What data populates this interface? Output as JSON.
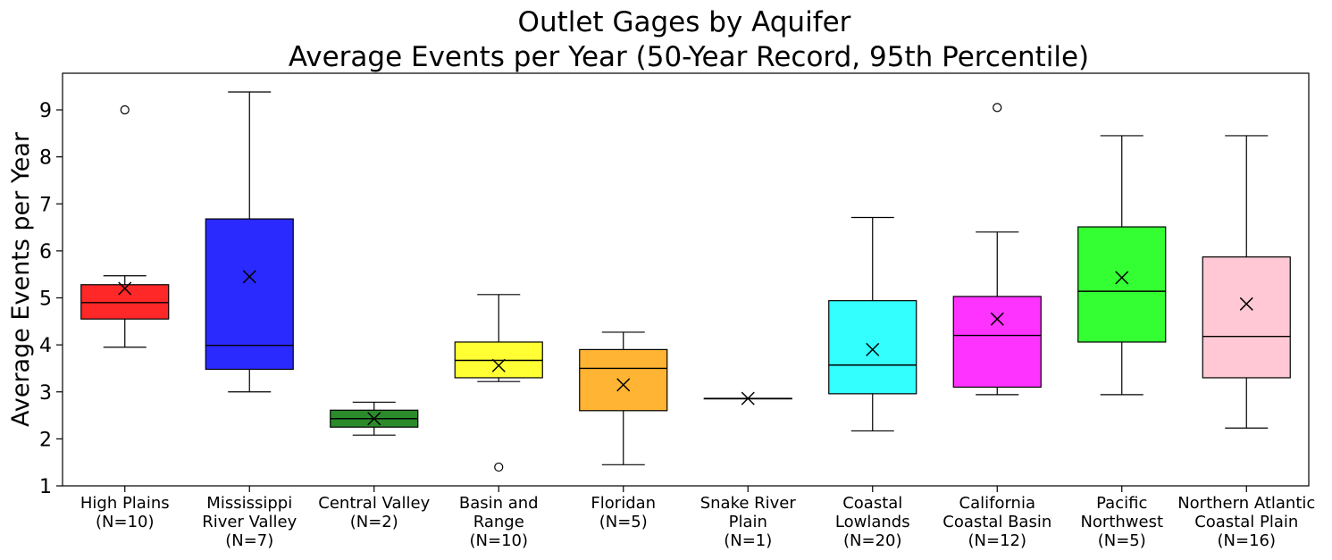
{
  "chart_data": {
    "type": "box",
    "title": "Outlet Gages by Aquifer",
    "subtitle": "Average Events per Year (50-Year Record, 95th Percentile)",
    "xlabel": "",
    "ylabel": "Average Events per Year",
    "ylim": [
      1,
      9.8
    ],
    "yticks": [
      1,
      2,
      3,
      4,
      5,
      6,
      7,
      8,
      9
    ],
    "grid": false,
    "mean_marker": "x",
    "outlier_marker": "circle",
    "categories": [
      {
        "label_lines": [
          "High Plains",
          "(N=10)"
        ],
        "color": "#ff2828",
        "whisker_low": 3.95,
        "q1": 4.55,
        "median": 4.9,
        "q3": 5.28,
        "whisker_high": 5.47,
        "mean": 5.2,
        "outliers": [
          9.0
        ]
      },
      {
        "label_lines": [
          "Mississippi",
          "River Valley",
          "(N=7)"
        ],
        "color": "#2a2aff",
        "whisker_low": 3.0,
        "q1": 3.48,
        "median": 3.99,
        "q3": 6.68,
        "whisker_high": 9.38,
        "mean": 5.45,
        "outliers": []
      },
      {
        "label_lines": [
          "Central Valley",
          "(N=2)"
        ],
        "color": "#2b8b2b",
        "whisker_low": 2.08,
        "q1": 2.25,
        "median": 2.43,
        "q3": 2.61,
        "whisker_high": 2.78,
        "mean": 2.43,
        "outliers": []
      },
      {
        "label_lines": [
          "Basin and",
          "Range",
          "(N=10)"
        ],
        "color": "#ffff33",
        "whisker_low": 3.22,
        "q1": 3.3,
        "median": 3.67,
        "q3": 4.06,
        "whisker_high": 5.07,
        "mean": 3.56,
        "outliers": [
          1.4
        ]
      },
      {
        "label_lines": [
          "Floridan",
          "(N=5)"
        ],
        "color": "#ffb433",
        "whisker_low": 1.45,
        "q1": 2.6,
        "median": 3.5,
        "q3": 3.9,
        "whisker_high": 4.27,
        "mean": 3.15,
        "outliers": []
      },
      {
        "label_lines": [
          "Snake River",
          "Plain",
          "(N=1)"
        ],
        "color": "#3a3a3a",
        "whisker_low": 2.86,
        "q1": 2.86,
        "median": 2.86,
        "q3": 2.86,
        "whisker_high": 2.86,
        "mean": 2.86,
        "outliers": []
      },
      {
        "label_lines": [
          "Coastal",
          "Lowlands",
          "(N=20)"
        ],
        "color": "#33ffff",
        "whisker_low": 2.17,
        "q1": 2.96,
        "median": 3.57,
        "q3": 4.94,
        "whisker_high": 6.71,
        "mean": 3.9,
        "outliers": []
      },
      {
        "label_lines": [
          "California",
          "Coastal Basin",
          "(N=12)"
        ],
        "color": "#ff33ff",
        "whisker_low": 2.94,
        "q1": 3.1,
        "median": 4.2,
        "q3": 5.03,
        "whisker_high": 6.4,
        "mean": 4.55,
        "outliers": [
          9.05
        ]
      },
      {
        "label_lines": [
          "Pacific",
          "Northwest",
          "(N=5)"
        ],
        "color": "#33ff33",
        "whisker_low": 2.94,
        "q1": 4.06,
        "median": 5.14,
        "q3": 6.51,
        "whisker_high": 8.45,
        "mean": 5.43,
        "outliers": []
      },
      {
        "label_lines": [
          "Northern Atlantic",
          "Coastal Plain",
          "(N=16)"
        ],
        "color": "#ffc8d4",
        "whisker_low": 2.23,
        "q1": 3.3,
        "median": 4.18,
        "q3": 5.87,
        "whisker_high": 8.45,
        "mean": 4.87,
        "outliers": []
      }
    ]
  }
}
